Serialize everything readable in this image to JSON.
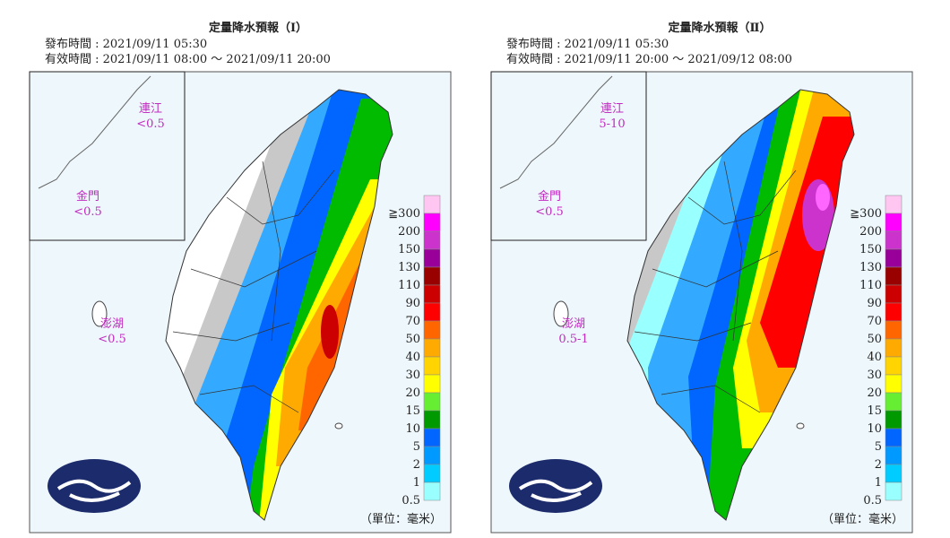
{
  "panels": [
    {
      "title": "定量降水預報（Ⅰ）",
      "issued": "發布時間 : 2021/09/11 05:30",
      "valid": "有效時間 : 2021/09/11 08:00 ～ 2021/09/11 20:00",
      "islands": [
        {
          "name": "連江",
          "amount": "<0.5"
        },
        {
          "name": "金門",
          "amount": "<0.5"
        },
        {
          "name": "澎湖",
          "amount": "<0.5"
        }
      ],
      "unit": "（單位：毫米）"
    },
    {
      "title": "定量降水預報（Ⅱ）",
      "issued": "發布時間 : 2021/09/11 05:30",
      "valid": "有效時間 : 2021/09/11 20:00 ～ 2021/09/12 08:00",
      "islands": [
        {
          "name": "連江",
          "amount": "5-10"
        },
        {
          "name": "金門",
          "amount": "<0.5"
        },
        {
          "name": "澎湖",
          "amount": "0.5-1"
        }
      ],
      "unit": "（單位：毫米）"
    }
  ],
  "legend": {
    "levels": [
      {
        "label": "≧300",
        "color": "#ffc6f2"
      },
      {
        "label": "200",
        "color": "#ff00ff"
      },
      {
        "label": "150",
        "color": "#cc33cc"
      },
      {
        "label": "130",
        "color": "#990099"
      },
      {
        "label": "110",
        "color": "#990000"
      },
      {
        "label": "90",
        "color": "#cc0000"
      },
      {
        "label": "70",
        "color": "#ff0000"
      },
      {
        "label": "50",
        "color": "#ff6600"
      },
      {
        "label": "40",
        "color": "#ffaa00"
      },
      {
        "label": "30",
        "color": "#ffd400"
      },
      {
        "label": "20",
        "color": "#ffff00"
      },
      {
        "label": "15",
        "color": "#66ee33"
      },
      {
        "label": "10",
        "color": "#009900"
      },
      {
        "label": "5",
        "color": "#0066ff"
      },
      {
        "label": "2",
        "color": "#0099ff"
      },
      {
        "label": "1",
        "color": "#00ccff"
      },
      {
        "label": "0.5",
        "color": "#99ffff"
      }
    ]
  }
}
